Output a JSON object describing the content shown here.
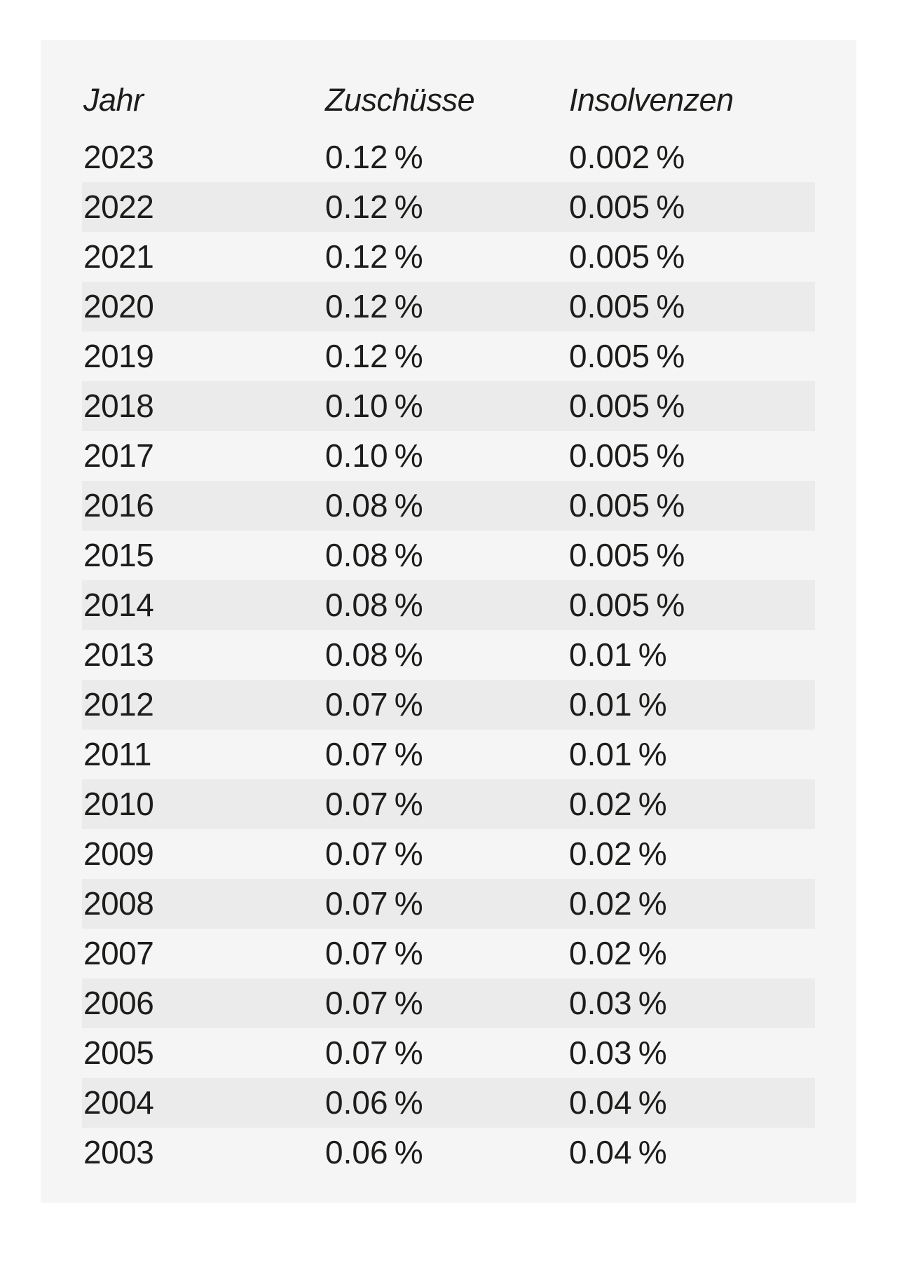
{
  "page": {
    "background_color": "#ffffff",
    "panel_background_color": "#f4f5f4",
    "stripe_color": "#ebebeb",
    "text_color": "#1d1d1b"
  },
  "chart_data": {
    "type": "table",
    "columns": [
      "Jahr",
      "Zuschüsse",
      "Insolvenzen"
    ],
    "rows": [
      [
        "2023",
        "0.12 %",
        "0.002 %"
      ],
      [
        "2022",
        "0.12 %",
        "0.005 %"
      ],
      [
        "2021",
        "0.12 %",
        "0.005 %"
      ],
      [
        "2020",
        "0.12 %",
        "0.005 %"
      ],
      [
        "2019",
        "0.12 %",
        "0.005 %"
      ],
      [
        "2018",
        "0.10 %",
        "0.005 %"
      ],
      [
        "2017",
        "0.10 %",
        "0.005 %"
      ],
      [
        "2016",
        "0.08 %",
        "0.005 %"
      ],
      [
        "2015",
        "0.08 %",
        "0.005 %"
      ],
      [
        "2014",
        "0.08 %",
        "0.005 %"
      ],
      [
        "2013",
        "0.08 %",
        "0.01 %"
      ],
      [
        "2012",
        "0.07 %",
        "0.01 %"
      ],
      [
        "2011",
        "0.07 %",
        "0.01 %"
      ],
      [
        "2010",
        "0.07 %",
        "0.02 %"
      ],
      [
        "2009",
        "0.07 %",
        "0.02 %"
      ],
      [
        "2008",
        "0.07 %",
        "0.02 %"
      ],
      [
        "2007",
        "0.07 %",
        "0.02 %"
      ],
      [
        "2006",
        "0.07 %",
        "0.03 %"
      ],
      [
        "2005",
        "0.07 %",
        "0.03 %"
      ],
      [
        "2004",
        "0.06 %",
        "0.04 %"
      ],
      [
        "2003",
        "0.06 %",
        "0.04 %"
      ]
    ],
    "values": {
      "jahr": [
        2023,
        2022,
        2021,
        2020,
        2019,
        2018,
        2017,
        2016,
        2015,
        2014,
        2013,
        2012,
        2011,
        2010,
        2009,
        2008,
        2007,
        2006,
        2005,
        2004,
        2003
      ],
      "zuschuesse_percent": [
        0.12,
        0.12,
        0.12,
        0.12,
        0.12,
        0.1,
        0.1,
        0.08,
        0.08,
        0.08,
        0.08,
        0.07,
        0.07,
        0.07,
        0.07,
        0.07,
        0.07,
        0.07,
        0.07,
        0.06,
        0.06
      ],
      "insolvenzen_percent": [
        0.002,
        0.005,
        0.005,
        0.005,
        0.005,
        0.005,
        0.005,
        0.005,
        0.005,
        0.005,
        0.01,
        0.01,
        0.01,
        0.02,
        0.02,
        0.02,
        0.02,
        0.03,
        0.03,
        0.04,
        0.04
      ]
    },
    "layout": {
      "striped_rows": "even",
      "header_style": "italic",
      "alignment": "left"
    }
  }
}
